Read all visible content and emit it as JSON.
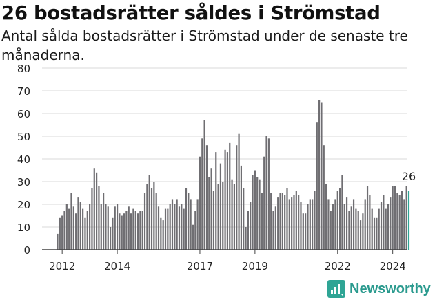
{
  "page": {
    "title": "26 bostadsrätter såldes i Strömstad",
    "subtitle": "Antal sålda bostadsrätter i Strömstad under de senaste tre månaderna.",
    "brand": "Newsworthy"
  },
  "colors": {
    "bar": "#6f6e72",
    "highlight": "#2fa595",
    "grid": "#d9d9d9",
    "axis": "#444444",
    "brand": "#2a9a8e"
  },
  "chart_data": {
    "type": "bar",
    "title": "26 bostadsrätter såldes i Strömstad",
    "subtitle": "Antal sålda bostadsrätter i Strömstad under de senaste tre månaderna.",
    "xlabel": "",
    "ylabel": "",
    "ylim": [
      0,
      80
    ],
    "yticks": [
      0,
      10,
      20,
      30,
      40,
      50,
      60,
      70,
      80
    ],
    "x_tick_labels": [
      {
        "label": "2012",
        "index": 2
      },
      {
        "label": "2014",
        "index": 26
      },
      {
        "label": "2017",
        "index": 62
      },
      {
        "label": "2019",
        "index": 86
      },
      {
        "label": "2022",
        "index": 122
      },
      {
        "label": "2024",
        "index": 146
      }
    ],
    "grid": true,
    "legend": "none",
    "frequency": "monthly, rolling three-month totals",
    "highlight_last": true,
    "last_label": "26",
    "values": [
      7,
      14,
      15,
      17,
      20,
      18,
      25,
      19,
      16,
      23,
      21,
      18,
      14,
      17,
      20,
      27,
      36,
      34,
      28,
      20,
      25,
      20,
      19,
      10,
      14,
      19,
      20,
      16,
      15,
      16,
      17,
      19,
      16,
      18,
      17,
      16,
      17,
      17,
      25,
      29,
      33,
      27,
      30,
      25,
      19,
      14,
      13,
      18,
      18,
      20,
      22,
      20,
      22,
      19,
      20,
      18,
      27,
      25,
      22,
      11,
      17,
      22,
      41,
      49,
      57,
      46,
      32,
      36,
      26,
      43,
      29,
      38,
      30,
      44,
      43,
      47,
      31,
      29,
      46,
      51,
      37,
      27,
      10,
      17,
      21,
      33,
      35,
      32,
      31,
      25,
      41,
      50,
      49,
      25,
      17,
      19,
      23,
      25,
      25,
      24,
      27,
      22,
      23,
      24,
      26,
      24,
      21,
      16,
      16,
      20,
      22,
      22,
      26,
      56,
      66,
      65,
      46,
      29,
      22,
      17,
      20,
      22,
      26,
      27,
      33,
      20,
      23,
      17,
      19,
      22,
      18,
      17,
      13,
      16,
      22,
      28,
      24,
      18,
      14,
      14,
      18,
      21,
      24,
      18,
      20,
      23,
      28,
      28,
      25,
      24,
      26,
      22,
      28,
      26
    ]
  }
}
